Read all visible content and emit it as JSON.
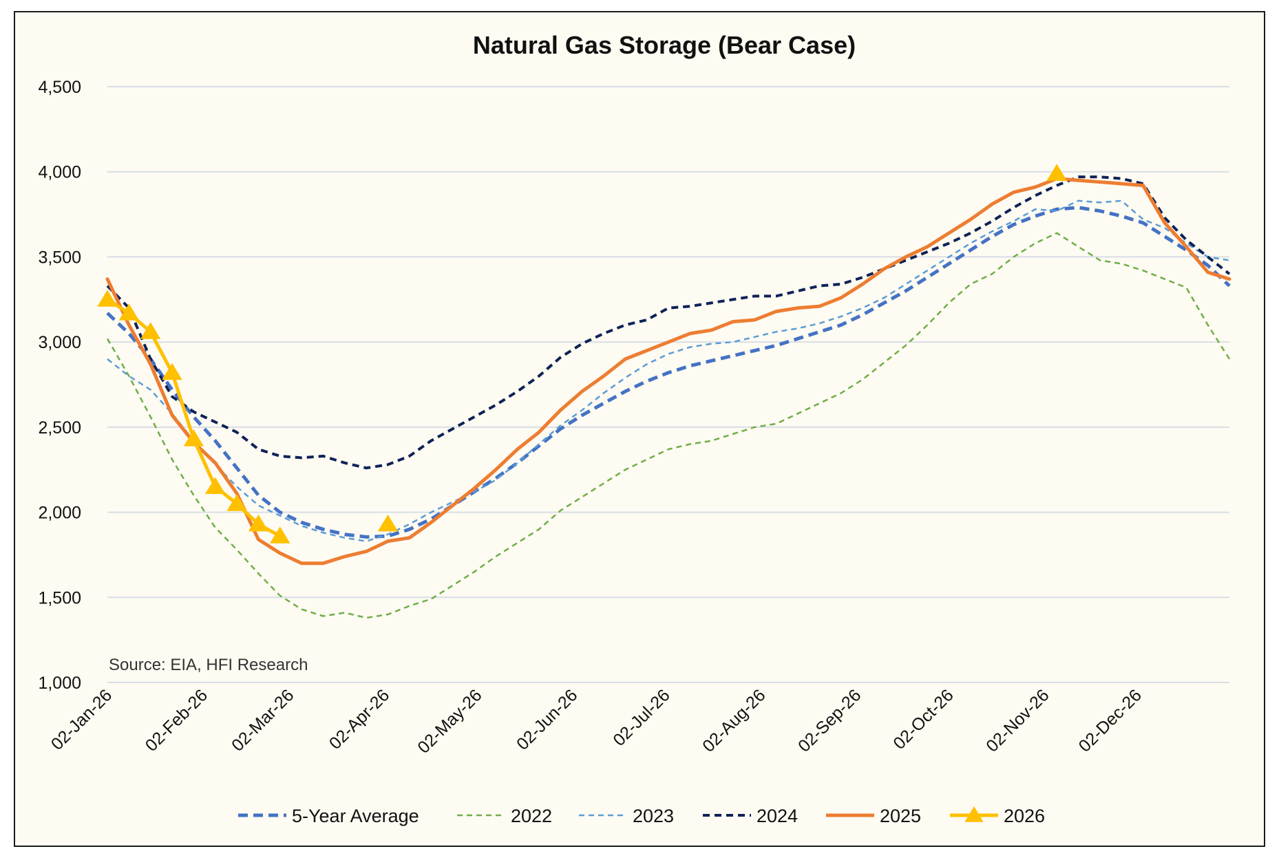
{
  "chart_data": {
    "type": "line",
    "title": "Natural Gas Storage (Bear Case)",
    "source": "Source: EIA, HFI Research",
    "xlabel": "",
    "ylabel": "",
    "ylim": [
      1000,
      4500
    ],
    "yticks": [
      "1,000",
      "1,500",
      "2,000",
      "2,500",
      "3,000",
      "3,500",
      "4,000",
      "4,500"
    ],
    "ytick_values": [
      1000,
      1500,
      2000,
      2500,
      3000,
      3500,
      4000,
      4500
    ],
    "xticks": [
      "02-Jan-26",
      "02-Feb-26",
      "02-Mar-26",
      "02-Apr-26",
      "02-May-26",
      "02-Jun-26",
      "02-Jul-26",
      "02-Aug-26",
      "02-Sep-26",
      "02-Oct-26",
      "02-Nov-26",
      "02-Dec-26"
    ],
    "xtick_day_of_year": [
      1,
      32,
      60,
      91,
      121,
      152,
      182,
      213,
      244,
      274,
      305,
      335
    ],
    "x_start": "02-Jan-26",
    "x_interval_days": 7,
    "grid": true,
    "legend_position": "bottom",
    "series": [
      {
        "name": "5-Year Average",
        "color": "#4472C4",
        "style": "dashed-thick",
        "values": [
          3170,
          3050,
          2900,
          2720,
          2560,
          2420,
          2260,
          2100,
          2000,
          1940,
          1900,
          1870,
          1855,
          1860,
          1900,
          1960,
          2040,
          2120,
          2200,
          2290,
          2390,
          2490,
          2570,
          2640,
          2710,
          2770,
          2820,
          2860,
          2890,
          2920,
          2950,
          2980,
          3020,
          3060,
          3100,
          3160,
          3230,
          3300,
          3380,
          3460,
          3540,
          3620,
          3690,
          3740,
          3780,
          3790,
          3770,
          3740,
          3700,
          3620,
          3540,
          3450,
          3330
        ]
      },
      {
        "name": "2022",
        "color": "#70AD47",
        "style": "dashed-thin",
        "values": [
          3020,
          2800,
          2560,
          2310,
          2100,
          1910,
          1780,
          1640,
          1510,
          1430,
          1390,
          1410,
          1380,
          1400,
          1450,
          1490,
          1570,
          1650,
          1740,
          1820,
          1900,
          2010,
          2090,
          2170,
          2250,
          2310,
          2370,
          2400,
          2420,
          2460,
          2500,
          2520,
          2580,
          2640,
          2700,
          2780,
          2880,
          2980,
          3100,
          3230,
          3340,
          3400,
          3500,
          3580,
          3640,
          3560,
          3480,
          3460,
          3420,
          3370,
          3320,
          3100,
          2900
        ]
      },
      {
        "name": "2023",
        "color": "#5B9BD5",
        "style": "dashed-thin",
        "values": [
          2900,
          2800,
          2720,
          2580,
          2420,
          2280,
          2150,
          2040,
          1980,
          1920,
          1880,
          1850,
          1830,
          1870,
          1930,
          2000,
          2060,
          2120,
          2190,
          2290,
          2400,
          2510,
          2600,
          2700,
          2790,
          2870,
          2930,
          2970,
          2990,
          3000,
          3030,
          3060,
          3080,
          3110,
          3150,
          3200,
          3260,
          3340,
          3420,
          3500,
          3580,
          3650,
          3710,
          3780,
          3770,
          3830,
          3820,
          3830,
          3720,
          3670,
          3580,
          3500,
          3480
        ]
      },
      {
        "name": "2024",
        "color": "#0E2257",
        "style": "dashed-med",
        "values": [
          3330,
          3200,
          2900,
          2680,
          2590,
          2530,
          2470,
          2370,
          2330,
          2320,
          2330,
          2290,
          2260,
          2280,
          2330,
          2420,
          2490,
          2560,
          2630,
          2710,
          2800,
          2910,
          2990,
          3050,
          3100,
          3130,
          3200,
          3210,
          3230,
          3250,
          3270,
          3270,
          3300,
          3330,
          3340,
          3380,
          3430,
          3480,
          3530,
          3580,
          3640,
          3710,
          3790,
          3860,
          3920,
          3970,
          3970,
          3960,
          3930,
          3730,
          3600,
          3500,
          3400
        ]
      },
      {
        "name": "2025",
        "color": "#ED7D31",
        "style": "solid-thick",
        "values": [
          3370,
          3100,
          2870,
          2570,
          2410,
          2290,
          2110,
          1840,
          1760,
          1700,
          1700,
          1740,
          1770,
          1830,
          1850,
          1940,
          2040,
          2140,
          2250,
          2370,
          2470,
          2600,
          2710,
          2800,
          2900,
          2950,
          3000,
          3050,
          3070,
          3120,
          3130,
          3180,
          3200,
          3210,
          3260,
          3340,
          3430,
          3500,
          3560,
          3640,
          3720,
          3810,
          3880,
          3910,
          3960,
          3950,
          3940,
          3930,
          3920,
          3700,
          3560,
          3410,
          3370
        ]
      },
      {
        "name": "2026",
        "color": "#FFC000",
        "style": "solid-triangle",
        "values": [
          3250,
          3170,
          3060,
          2820,
          2430,
          2150,
          2050,
          1930,
          1860,
          null,
          null,
          null,
          null,
          1930,
          null,
          null,
          null,
          null,
          null,
          null,
          null,
          null,
          null,
          null,
          null,
          null,
          null,
          null,
          null,
          null,
          null,
          null,
          null,
          null,
          null,
          null,
          null,
          null,
          null,
          null,
          null,
          null,
          null,
          null,
          3990,
          null,
          null,
          null,
          null,
          null,
          null,
          null,
          null
        ]
      }
    ]
  }
}
